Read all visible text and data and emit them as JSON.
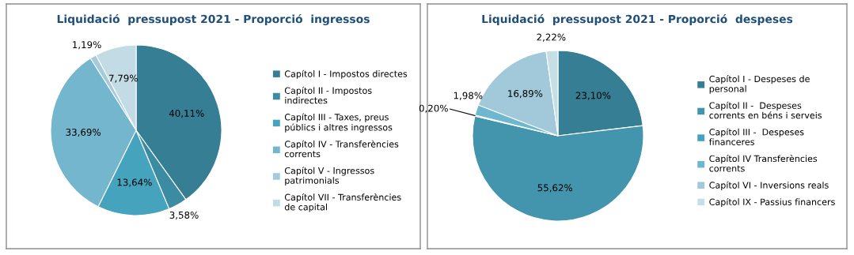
{
  "chart_data": [
    {
      "type": "pie",
      "title": "Liquidació  pressupost 2021 - Proporció  ingressos",
      "categories": [
        "Capítol I - Impostos directes",
        "Capítol II - Impostos indirectes",
        "Capítol III - Taxes, preus públics i altres ingressos",
        "Capítol IV - Transferències corrents",
        "Capítol V - Ingressos patrimonials",
        "Capítol VII - Transferències de capital"
      ],
      "values": [
        40.11,
        3.58,
        13.64,
        33.69,
        1.19,
        7.79
      ],
      "value_labels": [
        "40,11%",
        "3,58%",
        "13,64%",
        "33,69%",
        "1,19%",
        "7,79%"
      ],
      "colors": [
        "#367e94",
        "#3b8ca3",
        "#46a3bd",
        "#73b6cd",
        "#a4cbdc",
        "#c3dbe4"
      ],
      "legend": "right"
    },
    {
      "type": "pie",
      "title": "Liquidació  pressupost 2021 - Proporció  despeses",
      "categories": [
        "Capítol I - Despeses de personal",
        "Capítol II -  Despeses corrents en béns i serveis",
        "Capítol III -  Despeses financeres",
        "Capítol IV Transferències corrents",
        "Capítol VI - Inversions reals",
        "Capítol IX - Passius financers"
      ],
      "values": [
        23.1,
        55.62,
        0.2,
        1.98,
        16.89,
        2.22
      ],
      "value_labels": [
        "23,10%",
        "55,62%",
        "0,20%",
        "1,98%",
        "16,89%",
        "2,22%"
      ],
      "colors": [
        "#367e94",
        "#4394ad",
        "#46a3bd",
        "#6db7cf",
        "#a2c9da",
        "#c6dfe7"
      ],
      "legend": "right"
    }
  ]
}
